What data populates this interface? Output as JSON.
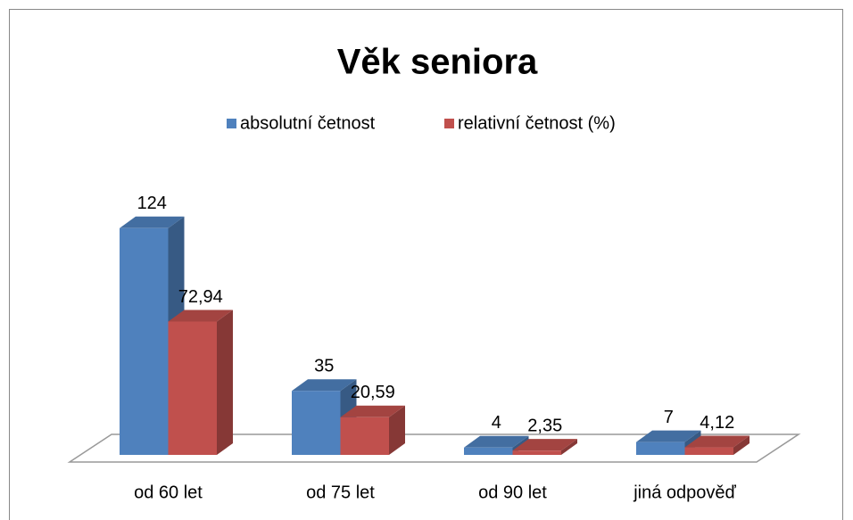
{
  "chart_data": {
    "type": "bar3d",
    "title": "Věk seniora",
    "categories": [
      "od 60 let",
      "od 75 let",
      "od 90 let",
      "jiná odpověď"
    ],
    "series": [
      {
        "name": "absolutní četnost",
        "color": "#4f81bd",
        "values": [
          124,
          35,
          4,
          7
        ]
      },
      {
        "name": "relativní četnost (%)",
        "color": "#c0504d",
        "values": [
          72.94,
          20.59,
          2.35,
          4.12
        ],
        "value_labels": [
          "72,94",
          "20,59",
          "2,35",
          "4,12"
        ]
      }
    ],
    "ylim": [
      0,
      140
    ],
    "legend": "top"
  }
}
